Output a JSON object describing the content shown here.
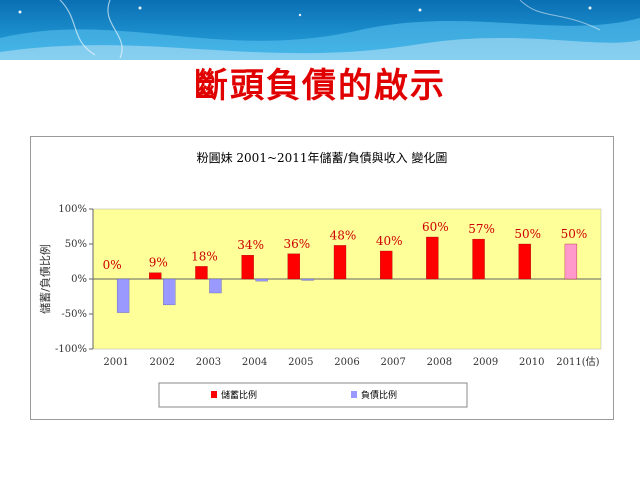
{
  "slide": {
    "title": "斷頭負債的啟示",
    "colors": {
      "title": "#e00000",
      "banner": "#0e86c4"
    }
  },
  "chart_data": {
    "type": "bar",
    "title": "粉圓妹  2001~2011年儲蓄/負債與收入 變化圖",
    "ylabel": "儲蓄/負債比例",
    "categories": [
      "2001",
      "2002",
      "2003",
      "2004",
      "2005",
      "2006",
      "2007",
      "2008",
      "2009",
      "2010",
      "2011(估)"
    ],
    "ylim": [
      -100,
      100
    ],
    "yticks": [
      "100%",
      "50%",
      "0%",
      "-50%",
      "-100%"
    ],
    "grid": false,
    "plot_background": "#ffff99",
    "legend_position": "bottom",
    "series": [
      {
        "name": "儲蓄比例",
        "color": "#ff0000",
        "values": [
          0,
          9,
          18,
          34,
          36,
          48,
          40,
          60,
          57,
          50,
          50
        ],
        "labels": [
          "0%",
          "9%",
          "18%",
          "34%",
          "36%",
          "48%",
          "40%",
          "60%",
          "57%",
          "50%",
          "50%"
        ],
        "highlight_last_color": "#ff99cc"
      },
      {
        "name": "負債比例",
        "color": "#9999ff",
        "values": [
          -48,
          -37,
          -20,
          -3,
          -2,
          0,
          0,
          0,
          0,
          0,
          0
        ]
      }
    ]
  }
}
